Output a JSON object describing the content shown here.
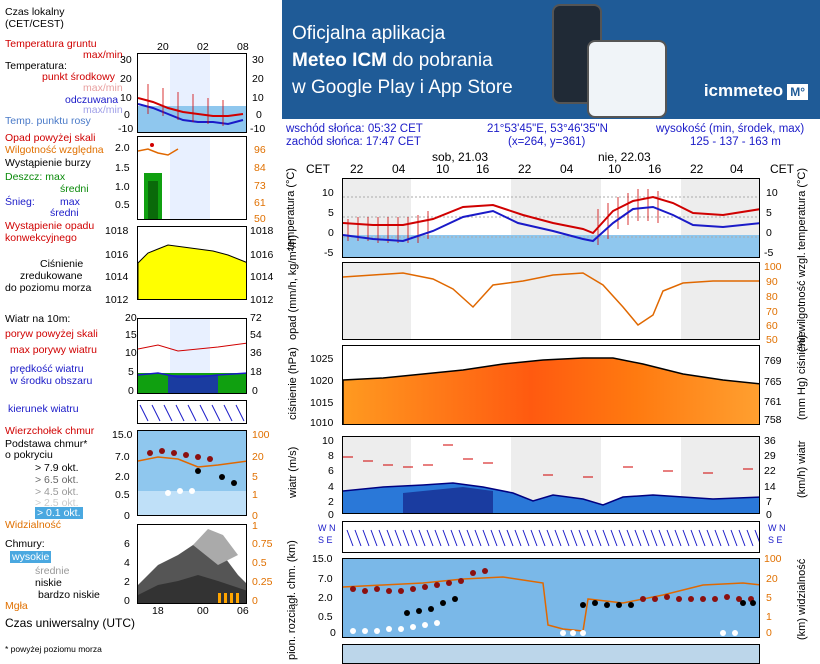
{
  "left": {
    "time_local": "Czas lokalny\n(CET/CEST)",
    "time_local_1": "Czas lokalny",
    "time_local_2": "(CET/CEST)",
    "top_ticks": [
      "20",
      "02",
      "08"
    ],
    "bottom_ticks": [
      "18",
      "00",
      "06"
    ],
    "temp": {
      "ground": "Temperatura gruntu",
      "maxmin": "max/min",
      "title": "Temperatura:",
      "mid": "punkt środkowy",
      "maxmin2": "max/min",
      "feels": "odczuwana",
      "maxmin3": "max/min",
      "dew": "Temp. punktu rosy",
      "yticks": [
        "30",
        "20",
        "10",
        "0",
        "-10"
      ]
    },
    "precip": {
      "above": "Opad powyżej skali",
      "humidity": "Wilgotność względna",
      "storm": "Wystąpienie burzy",
      "rain": "Deszcz: max",
      "mean": "średni",
      "snow": "Śnieg:",
      "snowmax": "max",
      "snowmean": "średni",
      "conv1": "Wystąpienie opadu",
      "conv2": "konwekcyjnego",
      "yticks": [
        "2.0",
        "1.5",
        "1.0",
        "0.5"
      ],
      "rticks": [
        "96",
        "84",
        "73",
        "61",
        "50"
      ]
    },
    "pressure": {
      "l1": "Ciśnienie",
      "l2": "zredukowane",
      "l3": "do poziomu morza",
      "yticks": [
        "1018",
        "1016",
        "1014",
        "1012"
      ]
    },
    "wind": {
      "title": "Wiatr na 10m:",
      "gust_above": "poryw powyżej skali",
      "gust_max": "max porywy wiatru",
      "speed1": "prędkość wiatru",
      "speed2": "w środku obszaru",
      "yticks": [
        "20",
        "15",
        "10",
        "5",
        "0"
      ],
      "rticks": [
        "72",
        "54",
        "36",
        "18",
        "0"
      ],
      "direction": "kierunek wiatru"
    },
    "clouds": {
      "top": "Wierzchołek chmur",
      "base1": "Podstawa chmur*",
      "base2": "o pokryciu",
      "o79": "> 7.9 okt.",
      "o65": "> 6.5 okt.",
      "o45": "> 4.5 okt.",
      "o25": "> 2.5 okt.",
      "o01": "> 0.1 okt.",
      "visibility": "Widzialność",
      "yticks": [
        "15.0",
        "7.0",
        "2.0",
        "0.5",
        "0"
      ],
      "rticks": [
        "100",
        "20",
        "5",
        "1",
        "0"
      ]
    },
    "layers": {
      "title": "Chmury:",
      "high": "wysokie",
      "mid": "średnie",
      "low": "niskie",
      "vlow": "bardzo niskie",
      "fog": "Mgła",
      "yticks": [
        "6",
        "4",
        "2",
        "0"
      ],
      "rticks": [
        "1",
        "0.75",
        "0.5",
        "0.25",
        "0"
      ]
    },
    "utc": "Czas uniwersalny (UTC)",
    "footnote": "* powyżej poziomu morza"
  },
  "banner": {
    "line1": "Oficjalna aplikacja",
    "line2a": "Meteo ICM",
    "line2b": " do pobrania",
    "line3": "w Google Play i App Store",
    "logo": "icmmeteo",
    "logo_box": "M°"
  },
  "info": {
    "sunrise": "wschód słońca: 05:32 CET",
    "sunset": "zachód słońca: 17:47 CET",
    "coords": "21°53'45\"E, 53°46'35\"N",
    "grid": "(x=264, y=361)",
    "alt_label": "wysokość (min, środek, max)",
    "alt_values": "125 - 137 - 163 m"
  },
  "main": {
    "cet": "CET",
    "day1": "sob, 21.03",
    "day2": "nie, 22.03",
    "hours": [
      "22",
      "04",
      "10",
      "16",
      "22",
      "04",
      "10",
      "16",
      "22",
      "04"
    ],
    "temp_label": "temperatura (°C)",
    "temp_yticks": [
      "10",
      "5",
      "0",
      "-5"
    ],
    "precip_label": "opad (mm/h, kg/m²/h)",
    "hum_label": "(%) wilgotność wzgl.",
    "hum_rticks": [
      "100",
      "90",
      "80",
      "70",
      "60",
      "50"
    ],
    "press_label": "ciśnienie (hPa)",
    "press_yticks": [
      "1025",
      "1020",
      "1015",
      "1010"
    ],
    "press_rlabel": "(mm Hg) ciśnienie",
    "press_rticks": [
      "769",
      "765",
      "761",
      "758"
    ],
    "wind_label": "wiatr (m/s)",
    "wind_yticks": [
      "10",
      "8",
      "6",
      "4",
      "2",
      "0"
    ],
    "wind_rlabel": "(km/h) wiatr",
    "wind_rticks": [
      "36",
      "29",
      "22",
      "14",
      "7",
      "0"
    ],
    "cloud_label": "pion. rozciągł. chm. (km)",
    "cloud_yticks": [
      "15.0",
      "7.0",
      "2.0",
      "0.5",
      "0"
    ],
    "vis_label": "(km) widzialność",
    "vis_rticks": [
      "100",
      "20",
      "5",
      "1",
      "0"
    ]
  },
  "colors": {
    "red": "#d00000",
    "blue": "#1a1ac8",
    "sky": "#8fc7ee",
    "yellow": "#ffff00",
    "orange": "#e06800",
    "green": "#10a010",
    "banner": "#1f5b97"
  }
}
